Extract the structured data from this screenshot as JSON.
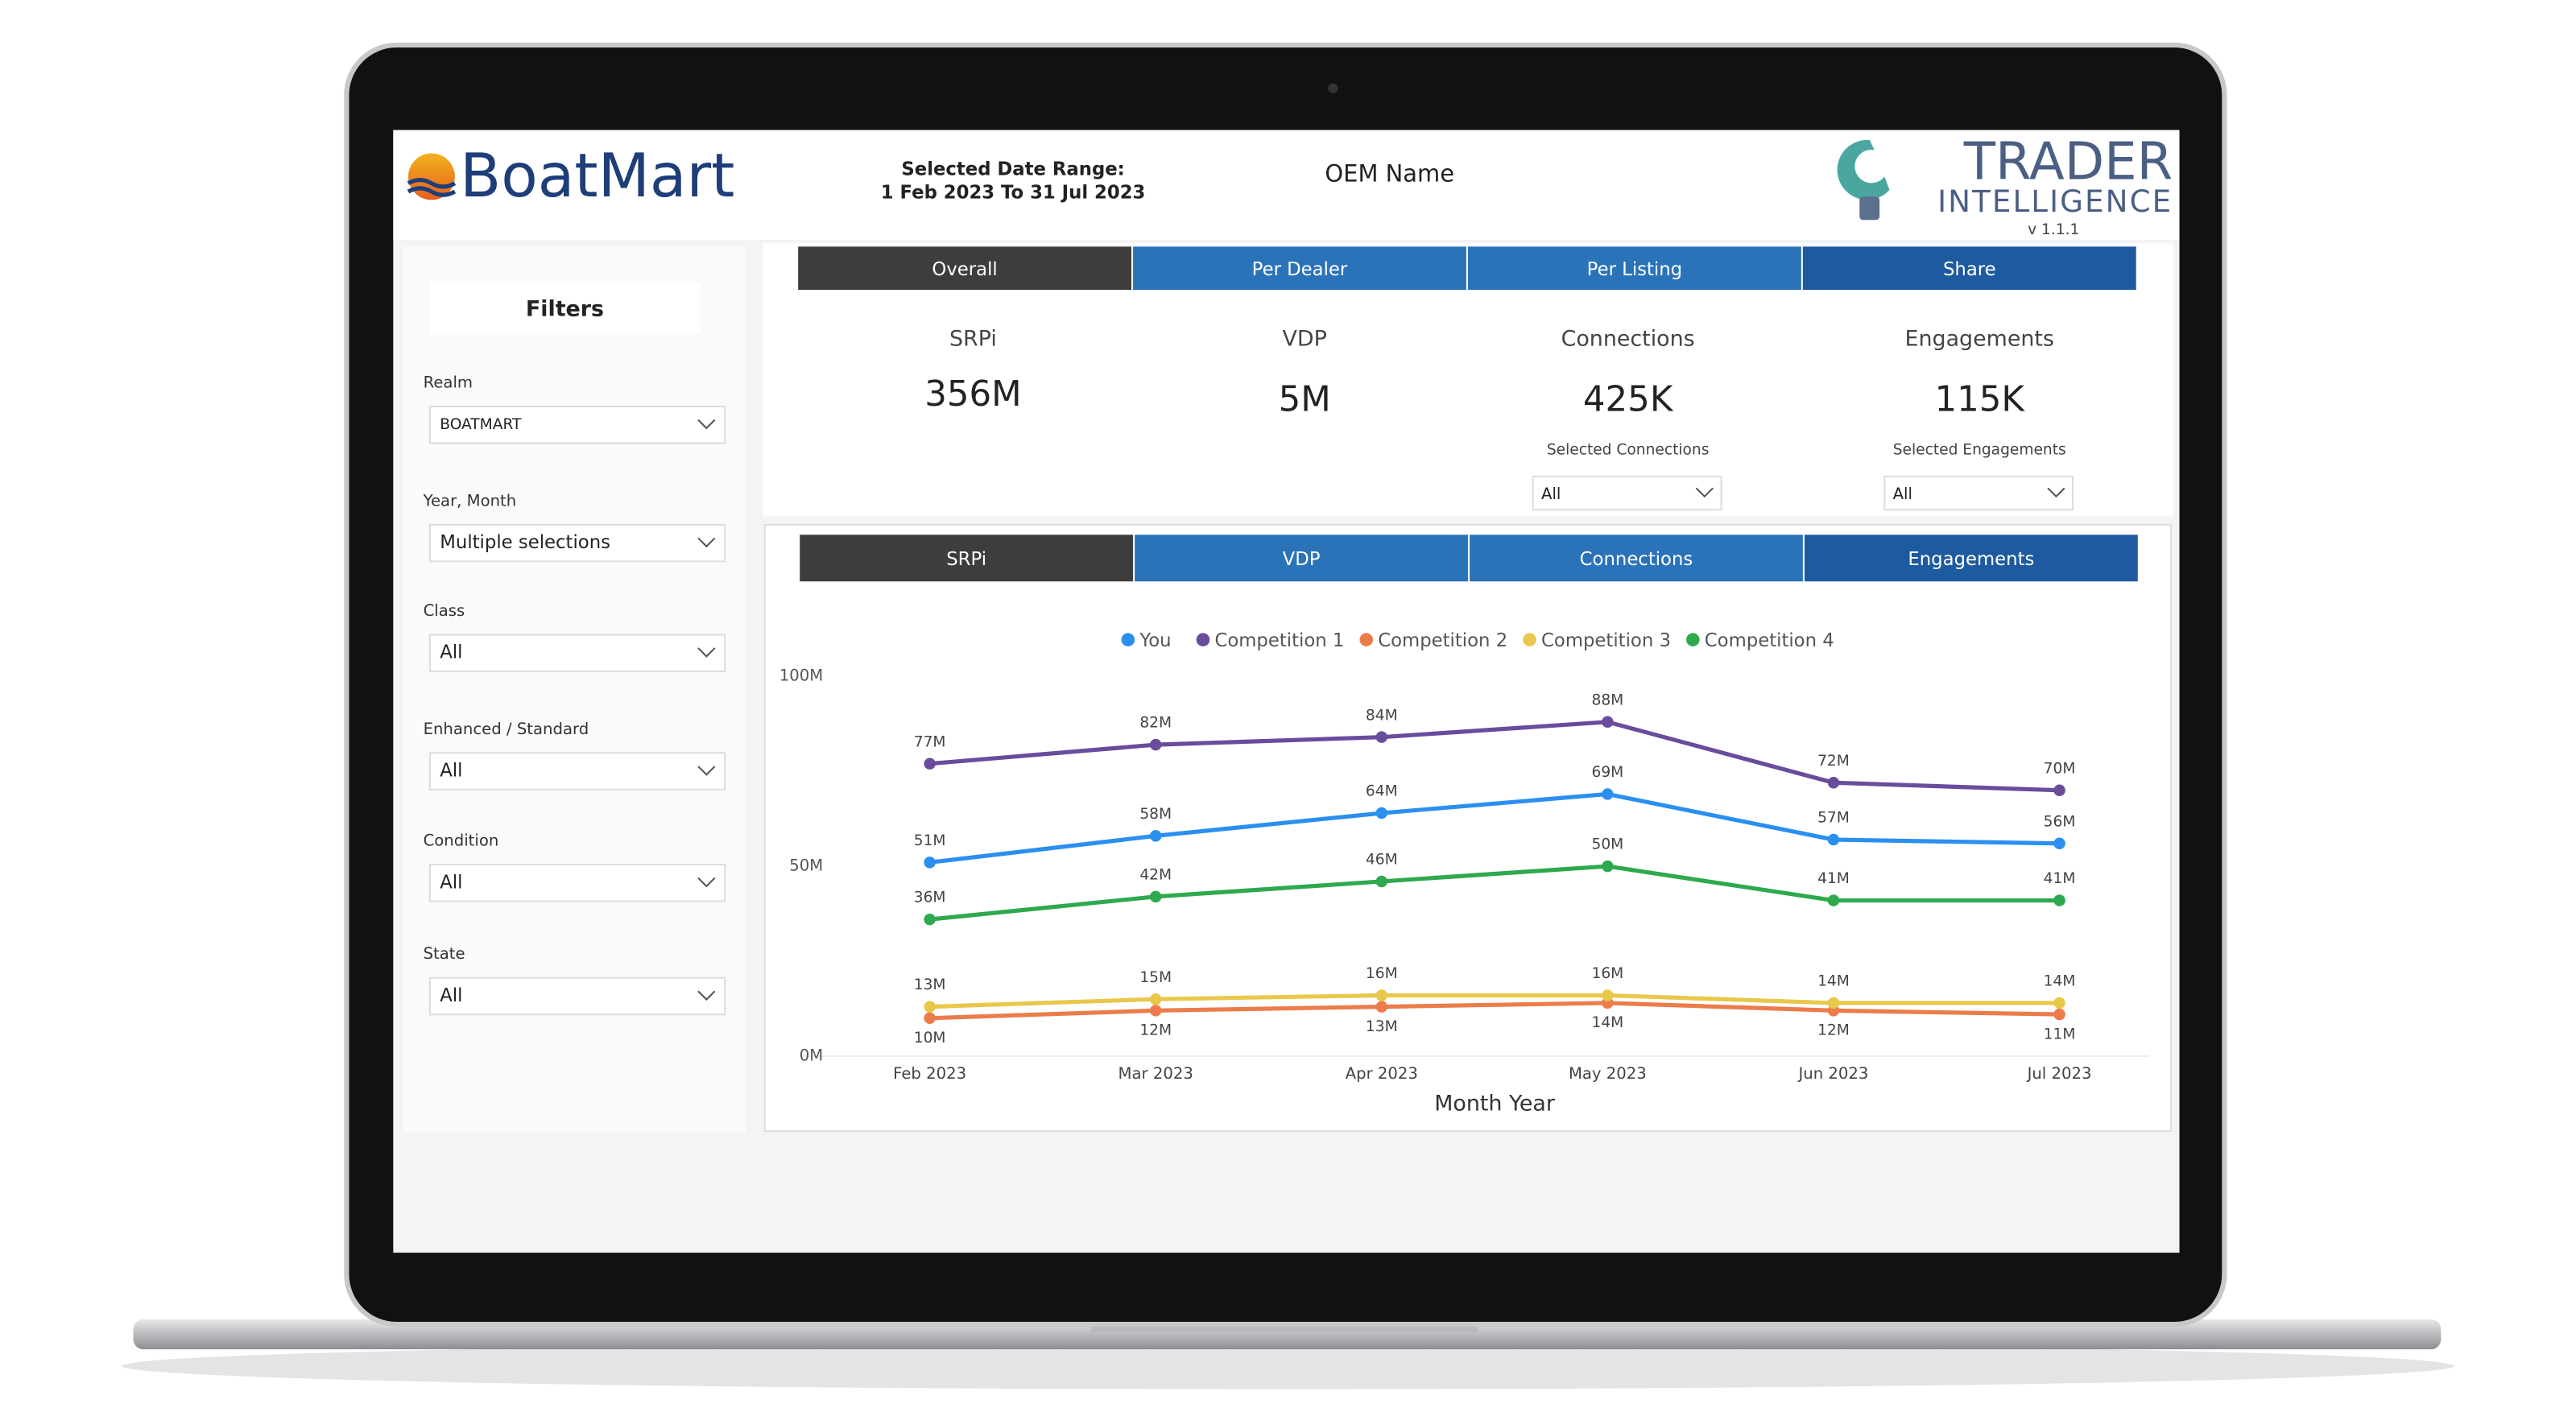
{
  "header": {
    "logo": "BoatMart",
    "date_range_label": "Selected Date Range:",
    "date_range": "1 Feb 2023 To 31 Jul 2023",
    "oem": "OEM Name",
    "brand_line1": "TRADER",
    "brand_line2": "INTELLIGENCE",
    "version": "v 1.1.1"
  },
  "filters": {
    "title": "Filters",
    "items": [
      {
        "label": "Realm",
        "value": "BOATMART"
      },
      {
        "label": "Year, Month",
        "value": "Multiple selections"
      },
      {
        "label": "Class",
        "value": "All"
      },
      {
        "label": "Enhanced / Standard",
        "value": "All"
      },
      {
        "label": "Condition",
        "value": "All"
      },
      {
        "label": "State",
        "value": "All"
      }
    ]
  },
  "tabs": [
    "Overall",
    "Per Dealer",
    "Per Listing",
    "Share"
  ],
  "kpis": [
    {
      "label": "SRPi",
      "value": "356M"
    },
    {
      "label": "VDP",
      "value": "5M"
    },
    {
      "label": "Connections",
      "value": "425K",
      "sub_label": "Selected Connections",
      "dropdown": "All"
    },
    {
      "label": "Engagements",
      "value": "115K",
      "sub_label": "Selected Engagements",
      "dropdown": "All"
    }
  ],
  "chart_tabs": [
    "SRPi",
    "VDP",
    "Connections",
    "Engagements"
  ],
  "chart_data": {
    "type": "line",
    "x_label": "Month Year",
    "categories": [
      "Feb 2023",
      "Mar 2023",
      "Apr 2023",
      "May 2023",
      "Jun 2023",
      "Jul 2023"
    ],
    "ylim": [
      0,
      100000000
    ],
    "yticks": [
      {
        "value": 0,
        "label": "0M"
      },
      {
        "value": 50000000,
        "label": "50M"
      },
      {
        "value": 100000000,
        "label": "100M"
      }
    ],
    "series": [
      {
        "name": "You",
        "color": "#2b8ff0",
        "values": [
          51000000,
          58000000,
          64000000,
          69000000,
          57000000,
          56000000
        ],
        "value_labels": [
          "51M",
          "58M",
          "64M",
          "69M",
          "57M",
          "56M"
        ]
      },
      {
        "name": "Competition 1",
        "color": "#6a4c9c",
        "values": [
          77000000,
          82000000,
          84000000,
          88000000,
          72000000,
          70000000
        ],
        "value_labels": [
          "77M",
          "82M",
          "84M",
          "88M",
          "72M",
          "70M"
        ]
      },
      {
        "name": "Competition 2",
        "color": "#ec7c4a",
        "values": [
          10000000,
          12000000,
          13000000,
          14000000,
          12000000,
          11000000
        ],
        "value_labels": [
          "10M",
          "12M",
          "13M",
          "14M",
          "12M",
          "11M"
        ]
      },
      {
        "name": "Competition 3",
        "color": "#e8c84a",
        "values": [
          13000000,
          15000000,
          16000000,
          16000000,
          14000000,
          14000000
        ],
        "value_labels": [
          "13M",
          "15M",
          "16M",
          "16M",
          "14M",
          "14M"
        ]
      },
      {
        "name": "Competition 4",
        "color": "#2ea94e",
        "values": [
          36000000,
          42000000,
          46000000,
          50000000,
          41000000,
          41000000
        ],
        "value_labels": [
          "36M",
          "42M",
          "46M",
          "50M",
          "41M",
          "41M"
        ]
      }
    ]
  }
}
